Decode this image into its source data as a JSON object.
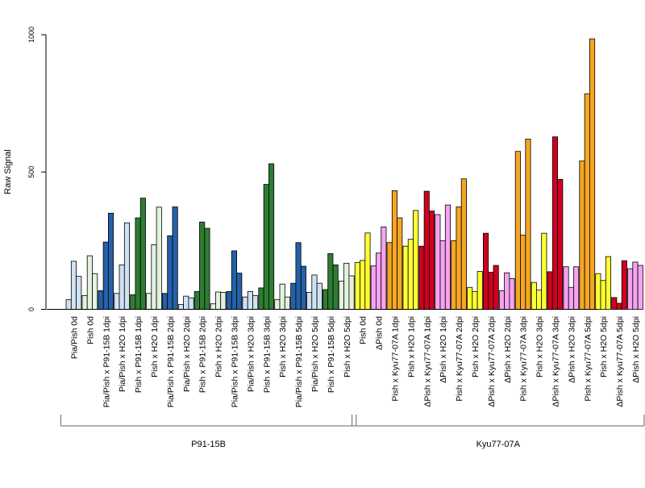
{
  "chart_data": {
    "type": "bar",
    "title": "",
    "xlabel": "",
    "ylabel": "Raw Signal",
    "ylim": [
      0,
      1000
    ],
    "yticks": [
      0,
      500,
      1000
    ],
    "colors": {
      "pale_blue": "#d0e1f2",
      "blue": "#2461a8",
      "pale_green": "#e3f2de",
      "green": "#2e7d32",
      "yellow": "#ffff33",
      "pink": "#f5a2f0",
      "orange": "#f5a623",
      "red": "#d00020"
    },
    "categories": [
      {
        "label": "Pia/Pish 0d",
        "color": "pale_blue",
        "values": [
          35,
          175,
          120
        ]
      },
      {
        "label": "Pish 0d",
        "color": "pale_green",
        "values": [
          50,
          195,
          130
        ]
      },
      {
        "label": "Pia/Pish x P91-15B 1dpi",
        "color": "blue",
        "values": [
          68,
          245,
          350
        ]
      },
      {
        "label": "Pia/Pish x H2O 1dpi",
        "color": "pale_blue",
        "values": [
          58,
          162,
          315
        ]
      },
      {
        "label": "Pish x P91-15B 1dpi",
        "color": "green",
        "values": [
          53,
          333,
          405
        ]
      },
      {
        "label": "Pish x H2O 1dpi",
        "color": "pale_green",
        "values": [
          58,
          235,
          372
        ]
      },
      {
        "label": "Pia/Pish x P91-15B 2dpi",
        "color": "blue",
        "values": [
          58,
          268,
          373
        ]
      },
      {
        "label": "Pia/Pish x H2O 2dpi",
        "color": "pale_blue",
        "values": [
          18,
          48,
          42
        ]
      },
      {
        "label": "Pish x P91-15B 2dpi",
        "color": "green",
        "values": [
          65,
          318,
          295
        ]
      },
      {
        "label": "Pish x H2O 2dpi",
        "color": "pale_green",
        "values": [
          20,
          63,
          62
        ]
      },
      {
        "label": "Pia/Pish x P91-15B 3dpi",
        "color": "blue",
        "values": [
          65,
          213,
          132
        ]
      },
      {
        "label": "Pia/Pish x H2O 3dpi",
        "color": "pale_blue",
        "values": [
          45,
          65,
          50
        ]
      },
      {
        "label": "Pish x P91-15B 3dpi",
        "color": "green",
        "values": [
          78,
          455,
          530
        ]
      },
      {
        "label": "Pish x H2O 3dpi",
        "color": "pale_green",
        "values": [
          35,
          92,
          45
        ]
      },
      {
        "label": "Pia/Pish x P91-15B 5dpi",
        "color": "blue",
        "values": [
          95,
          243,
          157
        ]
      },
      {
        "label": "Pia/Pish x H2O 5dpi",
        "color": "pale_blue",
        "values": [
          62,
          125,
          95
        ]
      },
      {
        "label": "Pish x P91-15B 5dpi",
        "color": "green",
        "values": [
          72,
          203,
          162
        ]
      },
      {
        "label": "Pish x H2O 5dpi",
        "color": "pale_green",
        "values": [
          103,
          168,
          122
        ]
      },
      {
        "label": "Pish 0d",
        "color": "yellow",
        "values": [
          170,
          178,
          278
        ]
      },
      {
        "label": "ΔPish 0d",
        "color": "pink",
        "values": [
          158,
          205,
          300
        ]
      },
      {
        "label": "Pish x Kyu77-07A 1dpi",
        "color": "orange",
        "values": [
          243,
          432,
          333
        ]
      },
      {
        "label": "Pish x H2O 1dpi",
        "color": "yellow",
        "values": [
          230,
          255,
          360
        ]
      },
      {
        "label": "ΔPish x Kyu77-07A 1dpi",
        "color": "red",
        "values": [
          230,
          430,
          358
        ]
      },
      {
        "label": "ΔPish x H2O 1dpi",
        "color": "pink",
        "values": [
          345,
          250,
          380
        ]
      },
      {
        "label": "Pish x Kyu77-07A 2dpi",
        "color": "orange",
        "values": [
          250,
          373,
          475
        ]
      },
      {
        "label": "Pish x H2O 2dpi",
        "color": "yellow",
        "values": [
          80,
          65,
          138
        ]
      },
      {
        "label": "ΔPish x Kyu77-07A 2dpi",
        "color": "red",
        "values": [
          277,
          135,
          160
        ]
      },
      {
        "label": "ΔPish x H2O 2dpi",
        "color": "pink",
        "values": [
          68,
          133,
          112
        ]
      },
      {
        "label": "Pish x Kyu77-07A 3dpi",
        "color": "orange",
        "values": [
          575,
          270,
          620
        ]
      },
      {
        "label": "Pish x H2O 3dpi",
        "color": "yellow",
        "values": [
          98,
          70,
          277
        ]
      },
      {
        "label": "ΔPish x Kyu77-07A 3dpi",
        "color": "red",
        "values": [
          137,
          628,
          473
        ]
      },
      {
        "label": "ΔPish x H2O 3dpi",
        "color": "pink",
        "values": [
          155,
          80,
          155
        ]
      },
      {
        "label": "Pish x Kyu77-07A 5dpi",
        "color": "orange",
        "values": [
          540,
          785,
          985
        ]
      },
      {
        "label": "Pish x H2O 5dpi",
        "color": "yellow",
        "values": [
          130,
          105,
          192
        ]
      },
      {
        "label": "ΔPish x Kyu77-07A 5dpi",
        "color": "red",
        "values": [
          43,
          22,
          177
        ]
      },
      {
        "label": "ΔPish x H2O 5dpi",
        "color": "pink",
        "values": [
          148,
          172,
          160
        ]
      }
    ],
    "groups": [
      {
        "label": "P91-15B",
        "start": 0,
        "end": 17
      },
      {
        "label": "Kyu77-07A",
        "start": 18,
        "end": 35
      }
    ],
    "grid": false,
    "legend": "none"
  }
}
